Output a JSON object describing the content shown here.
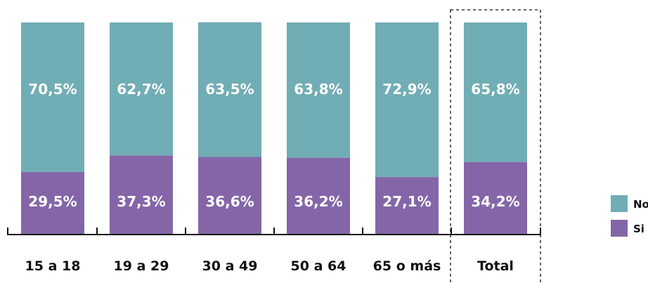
{
  "chart_data": {
    "type": "bar",
    "stacked": true,
    "percent_stacked": true,
    "categories": [
      "15 a 18",
      "19 a 29",
      "30 a 49",
      "50 a 64",
      "65 o más",
      "Total"
    ],
    "series": [
      {
        "name": "Si",
        "values": [
          29.5,
          37.3,
          36.6,
          36.2,
          27.1,
          34.2
        ],
        "labels": [
          "29,5%",
          "37,3%",
          "36,6%",
          "36,2%",
          "27,1%",
          "34,2%"
        ]
      },
      {
        "name": "No",
        "values": [
          70.5,
          62.7,
          63.5,
          63.8,
          72.9,
          65.8
        ],
        "labels": [
          "70,5%",
          "62,7%",
          "63,5%",
          "63,8%",
          "72,9%",
          "65,8%"
        ]
      }
    ],
    "ylim": [
      0,
      100
    ],
    "grid": false,
    "legend_position": "right",
    "highlight_category": "Total",
    "title": "",
    "xlabel": "",
    "ylabel": ""
  },
  "colors": {
    "Si": "#8466a8",
    "No": "#71adb5",
    "axis": "#111111"
  }
}
